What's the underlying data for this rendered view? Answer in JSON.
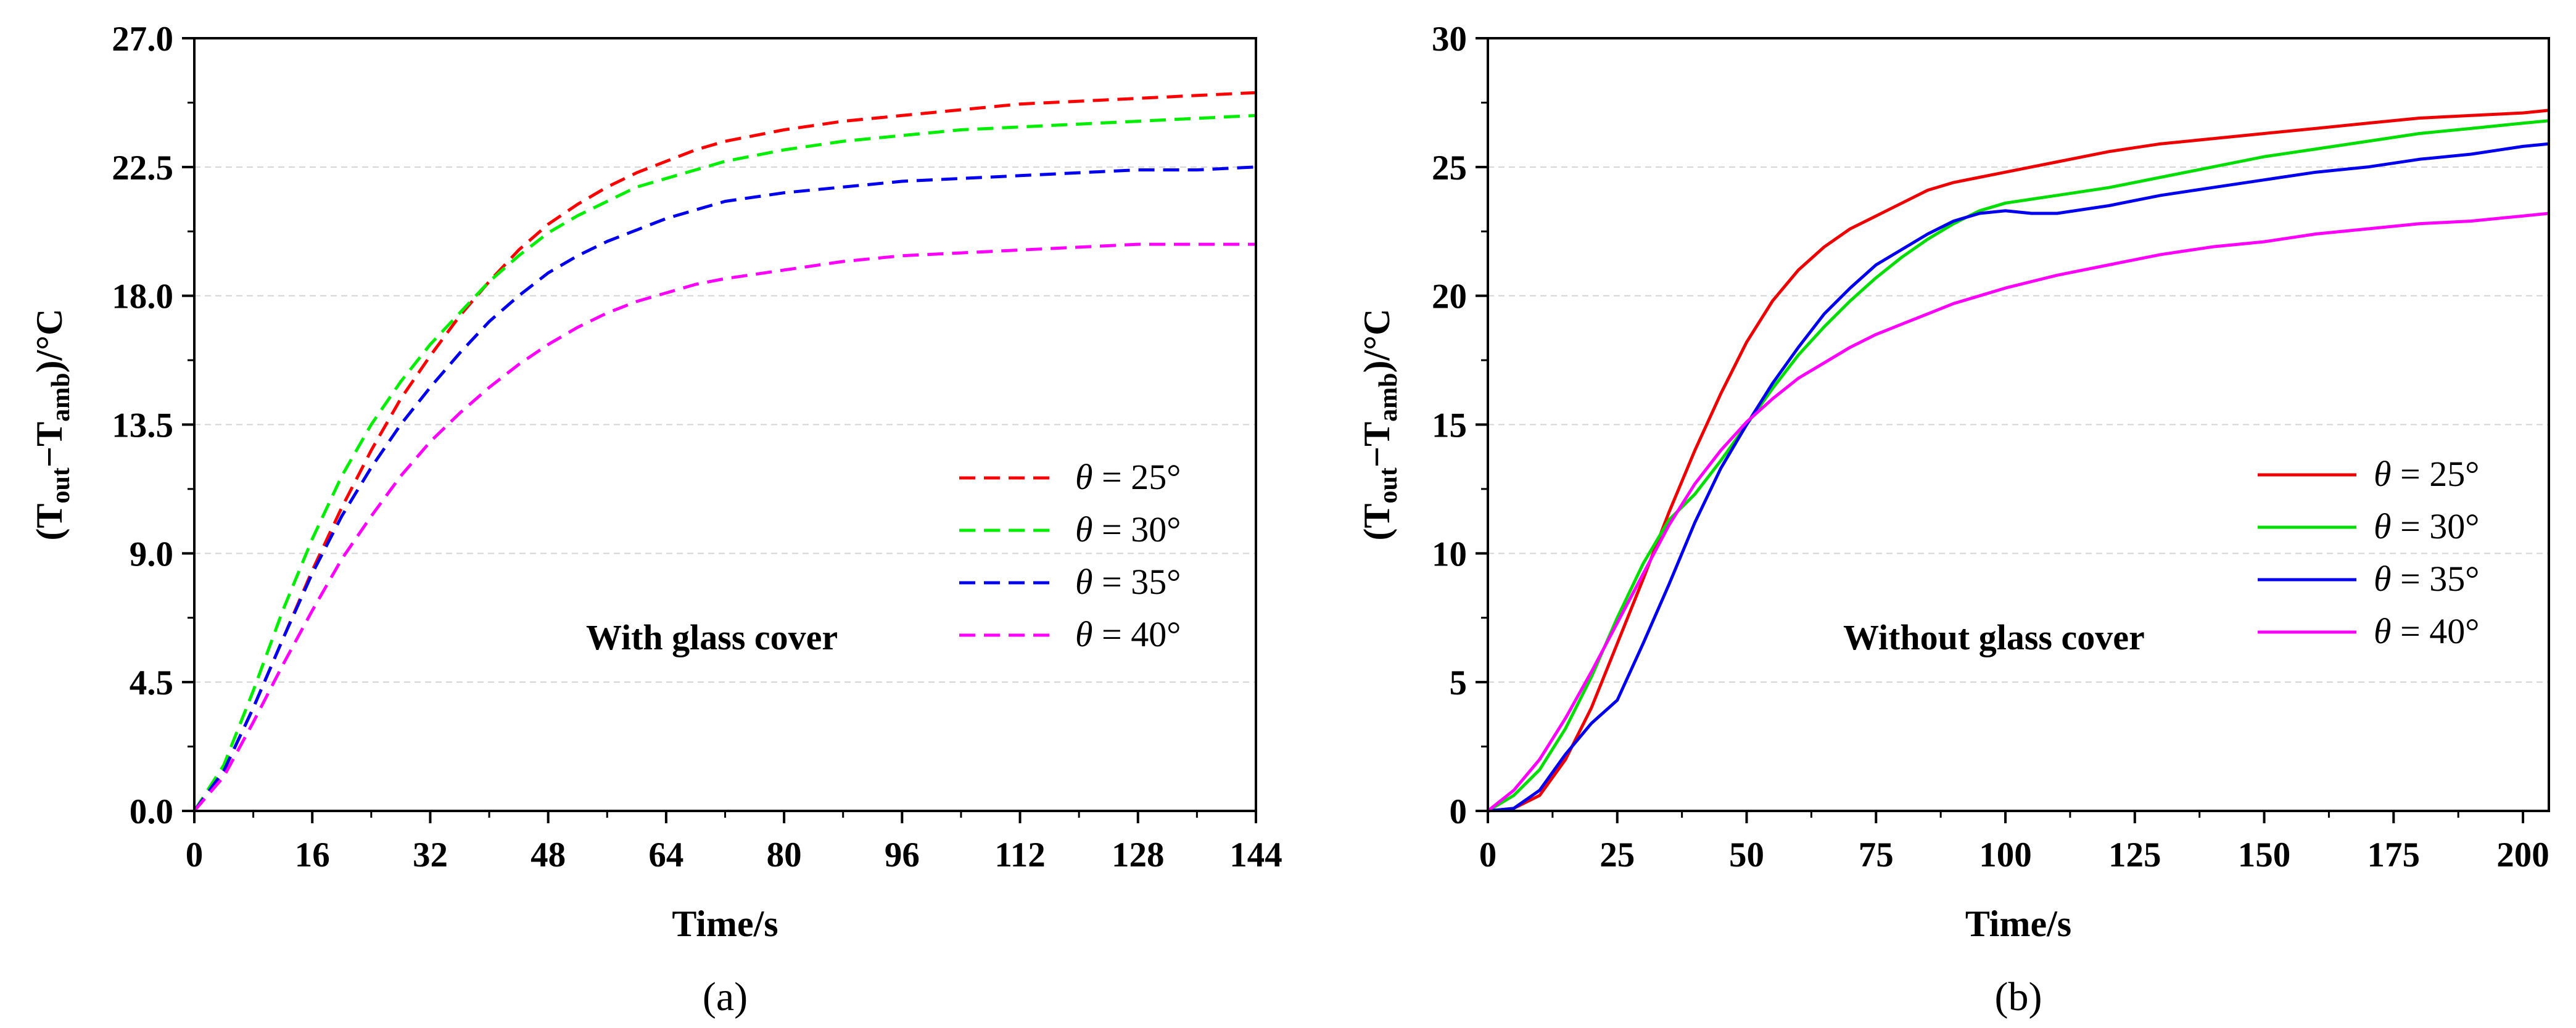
{
  "chart_data": [
    {
      "type": "line",
      "panel_label": "(a)",
      "annotation": "With glass cover",
      "xlabel": "Time/s",
      "ylabel": {
        "open": "(T",
        "sub1": "out",
        "mid": "−T",
        "sub2": "amb",
        "close": ")/°C"
      },
      "xlim": [
        0,
        144
      ],
      "ylim": [
        0,
        27
      ],
      "xticks": [
        0,
        16,
        32,
        48,
        64,
        80,
        96,
        112,
        128,
        144
      ],
      "xtick_labels": [
        "0",
        "16",
        "32",
        "48",
        "64",
        "80",
        "96",
        "112",
        "128",
        "144"
      ],
      "yticks": [
        0,
        4.5,
        9,
        13.5,
        18,
        22.5,
        27
      ],
      "ytick_labels": [
        "0.0",
        "4.5",
        "9.0",
        "13.5",
        "18.0",
        "22.5",
        "27.0"
      ],
      "grid": true,
      "line_style": "dashed",
      "legend_position": "lower-right",
      "series": [
        {
          "name": "θ = 25°",
          "symbol": "θ",
          "rest": " = 25°",
          "color": "#ff0000",
          "x": [
            0,
            4,
            8,
            12,
            16,
            20,
            24,
            28,
            32,
            36,
            40,
            44,
            48,
            52,
            56,
            60,
            64,
            68,
            72,
            80,
            88,
            96,
            104,
            112,
            120,
            128,
            136,
            144
          ],
          "y": [
            0,
            1.4,
            3.6,
            6.0,
            8.4,
            10.6,
            12.6,
            14.4,
            15.9,
            17.3,
            18.5,
            19.6,
            20.5,
            21.2,
            21.8,
            22.3,
            22.7,
            23.1,
            23.4,
            23.8,
            24.1,
            24.3,
            24.5,
            24.7,
            24.8,
            24.9,
            25.0,
            25.1
          ]
        },
        {
          "name": "θ = 30°",
          "symbol": "θ",
          "rest": " = 30°",
          "color": "#00ee00",
          "x": [
            0,
            4,
            8,
            12,
            16,
            20,
            24,
            28,
            32,
            36,
            40,
            44,
            48,
            52,
            56,
            60,
            64,
            68,
            72,
            80,
            88,
            96,
            104,
            112,
            120,
            128,
            136,
            144
          ],
          "y": [
            0,
            1.6,
            4.2,
            7.0,
            9.5,
            11.7,
            13.5,
            15.0,
            16.3,
            17.4,
            18.5,
            19.4,
            20.2,
            20.8,
            21.3,
            21.8,
            22.1,
            22.4,
            22.7,
            23.1,
            23.4,
            23.6,
            23.8,
            23.9,
            24.0,
            24.1,
            24.2,
            24.3
          ]
        },
        {
          "name": "θ = 35°",
          "symbol": "θ",
          "rest": " = 35°",
          "color": "#0000ee",
          "x": [
            0,
            4,
            8,
            12,
            16,
            20,
            24,
            28,
            32,
            36,
            40,
            44,
            48,
            52,
            56,
            60,
            64,
            68,
            72,
            80,
            88,
            96,
            104,
            112,
            120,
            128,
            136,
            144
          ],
          "y": [
            0,
            1.4,
            3.6,
            6.0,
            8.3,
            10.3,
            12.0,
            13.5,
            14.8,
            16.0,
            17.1,
            18.0,
            18.8,
            19.4,
            19.9,
            20.3,
            20.7,
            21.0,
            21.3,
            21.6,
            21.8,
            22.0,
            22.1,
            22.2,
            22.3,
            22.4,
            22.4,
            22.5
          ]
        },
        {
          "name": "θ = 40°",
          "symbol": "θ",
          "rest": " = 40°",
          "color": "#ff00ff",
          "x": [
            0,
            4,
            8,
            12,
            16,
            20,
            24,
            28,
            32,
            36,
            40,
            44,
            48,
            52,
            56,
            60,
            64,
            68,
            72,
            80,
            88,
            96,
            104,
            112,
            120,
            128,
            136,
            144
          ],
          "y": [
            0,
            1.2,
            3.1,
            5.1,
            7.0,
            8.8,
            10.3,
            11.7,
            12.9,
            13.9,
            14.8,
            15.6,
            16.3,
            16.9,
            17.4,
            17.8,
            18.1,
            18.4,
            18.6,
            18.9,
            19.2,
            19.4,
            19.5,
            19.6,
            19.7,
            19.8,
            19.8,
            19.8
          ]
        }
      ]
    },
    {
      "type": "line",
      "panel_label": "(b)",
      "annotation": "Without glass cover",
      "xlabel": "Time/s",
      "ylabel": {
        "open": "(T",
        "sub1": "out",
        "mid": "−T",
        "sub2": "amb",
        "close": ")/°C"
      },
      "xlim": [
        0,
        205
      ],
      "ylim": [
        0,
        30
      ],
      "xticks": [
        0,
        25,
        50,
        75,
        100,
        125,
        150,
        175,
        200
      ],
      "xtick_labels": [
        "0",
        "25",
        "50",
        "75",
        "100",
        "125",
        "150",
        "175",
        "200"
      ],
      "yticks": [
        0,
        5,
        10,
        15,
        20,
        25,
        30
      ],
      "ytick_labels": [
        "0",
        "5",
        "10",
        "15",
        "20",
        "25",
        "30"
      ],
      "grid": true,
      "line_style": "solid",
      "legend_position": "lower-right",
      "series": [
        {
          "name": "θ = 25°",
          "symbol": "θ",
          "rest": " = 25°",
          "color": "#ee0000",
          "x": [
            0,
            5,
            10,
            15,
            20,
            25,
            30,
            35,
            40,
            45,
            50,
            55,
            60,
            65,
            70,
            75,
            80,
            85,
            90,
            95,
            100,
            110,
            120,
            130,
            140,
            150,
            160,
            170,
            180,
            190,
            200,
            205
          ],
          "y": [
            0,
            0.1,
            0.6,
            2.0,
            4.0,
            6.5,
            9.0,
            11.6,
            14.0,
            16.2,
            18.2,
            19.8,
            21.0,
            21.9,
            22.6,
            23.1,
            23.6,
            24.1,
            24.4,
            24.6,
            24.8,
            25.2,
            25.6,
            25.9,
            26.1,
            26.3,
            26.5,
            26.7,
            26.9,
            27.0,
            27.1,
            27.2
          ]
        },
        {
          "name": "θ = 30°",
          "symbol": "θ",
          "rest": " = 30°",
          "color": "#00dd00",
          "x": [
            0,
            5,
            10,
            15,
            20,
            25,
            30,
            35,
            40,
            45,
            50,
            55,
            60,
            65,
            70,
            75,
            80,
            85,
            90,
            95,
            100,
            110,
            120,
            130,
            140,
            150,
            160,
            170,
            180,
            190,
            200,
            205
          ],
          "y": [
            0,
            0.6,
            1.6,
            3.2,
            5.2,
            7.5,
            9.6,
            11.3,
            12.3,
            13.6,
            15.0,
            16.4,
            17.7,
            18.8,
            19.8,
            20.7,
            21.5,
            22.2,
            22.8,
            23.3,
            23.6,
            23.9,
            24.2,
            24.6,
            25.0,
            25.4,
            25.7,
            26.0,
            26.3,
            26.5,
            26.7,
            26.8
          ]
        },
        {
          "name": "θ = 35°",
          "symbol": "θ",
          "rest": " = 35°",
          "color": "#0000ee",
          "x": [
            0,
            5,
            10,
            15,
            20,
            25,
            30,
            35,
            40,
            45,
            50,
            55,
            60,
            65,
            70,
            75,
            80,
            85,
            90,
            95,
            100,
            105,
            110,
            120,
            130,
            140,
            150,
            160,
            170,
            180,
            190,
            200,
            205
          ],
          "y": [
            0,
            0.1,
            0.8,
            2.2,
            3.4,
            4.3,
            6.5,
            8.8,
            11.2,
            13.3,
            15.0,
            16.6,
            18.0,
            19.3,
            20.3,
            21.2,
            21.8,
            22.4,
            22.9,
            23.2,
            23.3,
            23.2,
            23.2,
            23.5,
            23.9,
            24.2,
            24.5,
            24.8,
            25.0,
            25.3,
            25.5,
            25.8,
            25.9
          ]
        },
        {
          "name": "θ = 40°",
          "symbol": "θ",
          "rest": " = 40°",
          "color": "#ff00ff",
          "x": [
            0,
            5,
            10,
            15,
            20,
            25,
            30,
            35,
            40,
            45,
            50,
            55,
            60,
            65,
            70,
            75,
            80,
            85,
            90,
            95,
            100,
            110,
            120,
            130,
            140,
            150,
            160,
            170,
            180,
            190,
            200,
            205
          ],
          "y": [
            0,
            0.8,
            2.0,
            3.6,
            5.4,
            7.3,
            9.2,
            11.1,
            12.7,
            14.0,
            15.1,
            16.0,
            16.8,
            17.4,
            18.0,
            18.5,
            18.9,
            19.3,
            19.7,
            20.0,
            20.3,
            20.8,
            21.2,
            21.6,
            21.9,
            22.1,
            22.4,
            22.6,
            22.8,
            22.9,
            23.1,
            23.2
          ]
        }
      ]
    }
  ]
}
